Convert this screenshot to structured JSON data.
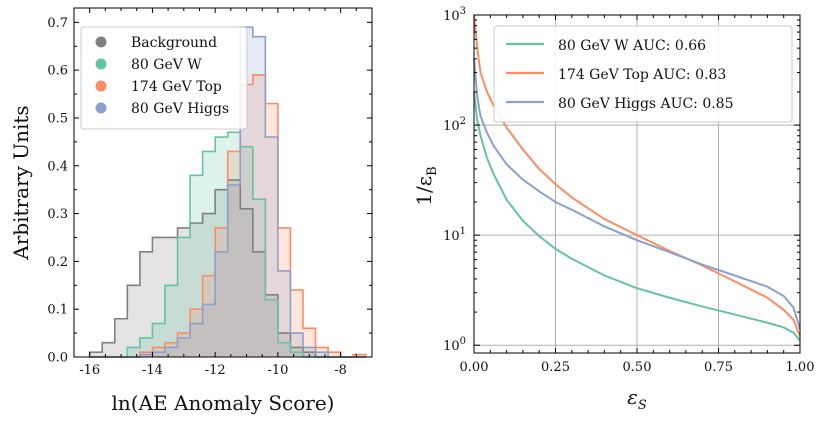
{
  "chart_data": [
    {
      "type": "histogram",
      "xlabel": "ln(AE Anomaly Score)",
      "ylabel": "Arbitrary Units",
      "xlim": [
        -16.5,
        -7
      ],
      "ylim": [
        0,
        0.73
      ],
      "xticks": [
        -16,
        -14,
        -12,
        -10,
        -8
      ],
      "xtick_labels": [
        "-16",
        "-14",
        "-12",
        "-10",
        "-8"
      ],
      "yticks": [
        0.0,
        0.1,
        0.2,
        0.3,
        0.4,
        0.5,
        0.6,
        0.7
      ],
      "ytick_labels": [
        "0.0",
        "0.1",
        "0.2",
        "0.3",
        "0.4",
        "0.5",
        "0.6",
        "0.7"
      ],
      "legend_position": "top-left",
      "bin_edges": [
        -16.0,
        -15.6,
        -15.2,
        -14.8,
        -14.4,
        -14.0,
        -13.6,
        -13.2,
        -12.8,
        -12.4,
        -12.0,
        -11.6,
        -11.2,
        -10.8,
        -10.4,
        -10.0,
        -9.6,
        -9.2,
        -8.8,
        -8.4,
        -8.0,
        -7.6,
        -7.2
      ],
      "series": [
        {
          "name": "Background",
          "color": "#808080",
          "values": [
            0.01,
            0.03,
            0.08,
            0.15,
            0.22,
            0.25,
            0.25,
            0.27,
            0.28,
            0.3,
            0.35,
            0.37,
            0.31,
            0.22,
            0.13,
            0.05,
            0.02,
            0.01,
            0,
            0,
            0,
            0
          ]
        },
        {
          "name": "80 GeV W",
          "color": "#66c2a5",
          "values": [
            0,
            0,
            0,
            0.02,
            0.04,
            0.07,
            0.15,
            0.25,
            0.38,
            0.43,
            0.46,
            0.47,
            0.44,
            0.33,
            0.12,
            0.03,
            0.01,
            0,
            0,
            0,
            0,
            0
          ]
        },
        {
          "name": "174 GeV Top",
          "color": "#fc8d62",
          "values": [
            0,
            0,
            0,
            0,
            0.01,
            0.02,
            0.03,
            0.05,
            0.1,
            0.17,
            0.27,
            0.43,
            0.57,
            0.59,
            0.53,
            0.27,
            0.14,
            0.06,
            0.02,
            0.01,
            0,
            0.005
          ]
        },
        {
          "name": "80 GeV Higgs",
          "color": "#8da0cb",
          "values": [
            0,
            0,
            0,
            0,
            0.005,
            0.01,
            0.02,
            0.04,
            0.07,
            0.11,
            0.22,
            0.36,
            0.69,
            0.67,
            0.46,
            0.18,
            0.05,
            0.02,
            0.01,
            0,
            0,
            0
          ]
        }
      ]
    },
    {
      "type": "line",
      "xlabel": "εS",
      "ylabel": "1/εB",
      "xscale": "linear",
      "yscale": "log",
      "xlim": [
        0,
        1
      ],
      "ylim": [
        0.85,
        1000
      ],
      "grid": true,
      "legend_position": "top-right",
      "xticks": [
        0,
        0.25,
        0.5,
        0.75,
        1.0
      ],
      "xtick_labels": [
        "0.00",
        "0.25",
        "0.50",
        "0.75",
        "1.00"
      ],
      "yticks": [
        1,
        10,
        100,
        1000
      ],
      "ytick_labels": [
        "10^0",
        "10^1",
        "10^2",
        "10^3"
      ],
      "series": [
        {
          "name": "80 GeV W AUC: 0.66",
          "color": "#66c2a5",
          "x": [
            0.0,
            0.01,
            0.02,
            0.04,
            0.06,
            0.1,
            0.15,
            0.2,
            0.25,
            0.3,
            0.4,
            0.5,
            0.6,
            0.7,
            0.8,
            0.9,
            0.95,
            0.98,
            1.0
          ],
          "y": [
            200,
            110,
            80,
            50,
            36,
            21,
            13.5,
            9.8,
            7.5,
            6.1,
            4.3,
            3.3,
            2.7,
            2.25,
            1.9,
            1.6,
            1.45,
            1.3,
            1.1
          ]
        },
        {
          "name": "174 GeV Top AUC: 0.83",
          "color": "#fc8d62",
          "x": [
            0.0,
            0.01,
            0.02,
            0.04,
            0.06,
            0.1,
            0.15,
            0.2,
            0.25,
            0.3,
            0.4,
            0.5,
            0.6,
            0.7,
            0.8,
            0.9,
            0.95,
            0.98,
            1.0
          ],
          "y": [
            1000,
            500,
            300,
            200,
            150,
            95,
            60,
            40,
            29,
            22,
            14,
            10,
            7.2,
            5.3,
            3.8,
            2.7,
            2.1,
            1.7,
            1.2
          ]
        },
        {
          "name": "80 GeV Higgs AUC: 0.85",
          "color": "#8da0cb",
          "x": [
            0.0,
            0.01,
            0.02,
            0.04,
            0.06,
            0.1,
            0.15,
            0.2,
            0.25,
            0.3,
            0.4,
            0.5,
            0.6,
            0.7,
            0.8,
            0.9,
            0.95,
            0.98,
            1.0
          ],
          "y": [
            400,
            180,
            120,
            85,
            65,
            44,
            32,
            25,
            20,
            17,
            12,
            9,
            7,
            5.4,
            4.3,
            3.4,
            2.8,
            2.2,
            1.4
          ]
        }
      ]
    }
  ]
}
